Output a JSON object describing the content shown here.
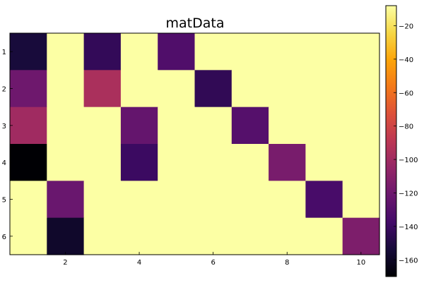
{
  "chart_data": {
    "type": "heatmap",
    "title": "matData",
    "x_tick_labels": [
      "2",
      "4",
      "6",
      "8",
      "10"
    ],
    "x_tick_values": [
      2,
      4,
      6,
      8,
      10
    ],
    "y_tick_labels": [
      "1",
      "2",
      "3",
      "4",
      "5",
      "6"
    ],
    "y_tick_values": [
      1,
      2,
      3,
      4,
      5,
      6
    ],
    "columns": [
      1,
      2,
      3,
      4,
      5,
      6,
      7,
      8,
      9,
      10
    ],
    "rows": [
      1,
      2,
      3,
      4,
      5,
      6
    ],
    "matrix": [
      [
        -153,
        -8,
        -143,
        -8,
        -132,
        -8,
        -8,
        -8,
        -8,
        -8
      ],
      [
        -120,
        -8,
        -96,
        -8,
        -8,
        -144,
        -8,
        -8,
        -8,
        -8
      ],
      [
        -100,
        -8,
        -8,
        -124,
        -8,
        -8,
        -130,
        -8,
        -8,
        -8
      ],
      [
        -170,
        -8,
        -8,
        -140,
        -8,
        -8,
        -8,
        -116,
        -8,
        -8
      ],
      [
        -8,
        -122,
        -8,
        -8,
        -8,
        -8,
        -8,
        -8,
        -135,
        -8
      ],
      [
        -8,
        -158,
        -8,
        -8,
        -8,
        -8,
        -8,
        -8,
        -8,
        -114
      ]
    ],
    "colorbar": {
      "tick_labels": [
        "−20",
        "−40",
        "−60",
        "−80",
        "−100",
        "−120",
        "−140",
        "−160"
      ],
      "tick_values": [
        -20,
        -40,
        -60,
        -80,
        -100,
        -120,
        -140,
        -160
      ],
      "range": [
        -170,
        -8
      ],
      "colormap": "inferno"
    },
    "legend": "none"
  }
}
